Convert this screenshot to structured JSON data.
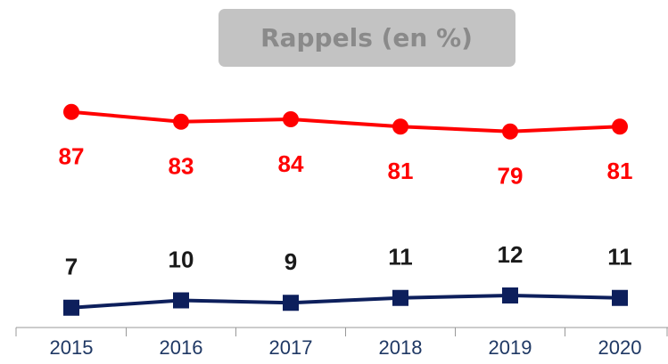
{
  "chart_data": {
    "type": "line",
    "title": "Rappels (en %)",
    "categories": [
      "2015",
      "2016",
      "2017",
      "2018",
      "2019",
      "2020"
    ],
    "series": [
      {
        "color": "#ff0000",
        "values": [
          87,
          83,
          84,
          81,
          79,
          81
        ]
      },
      {
        "color": "#0d1f5c",
        "values": [
          7,
          10,
          9,
          11,
          12,
          11
        ]
      }
    ],
    "ylim": [
      0,
      100
    ]
  }
}
